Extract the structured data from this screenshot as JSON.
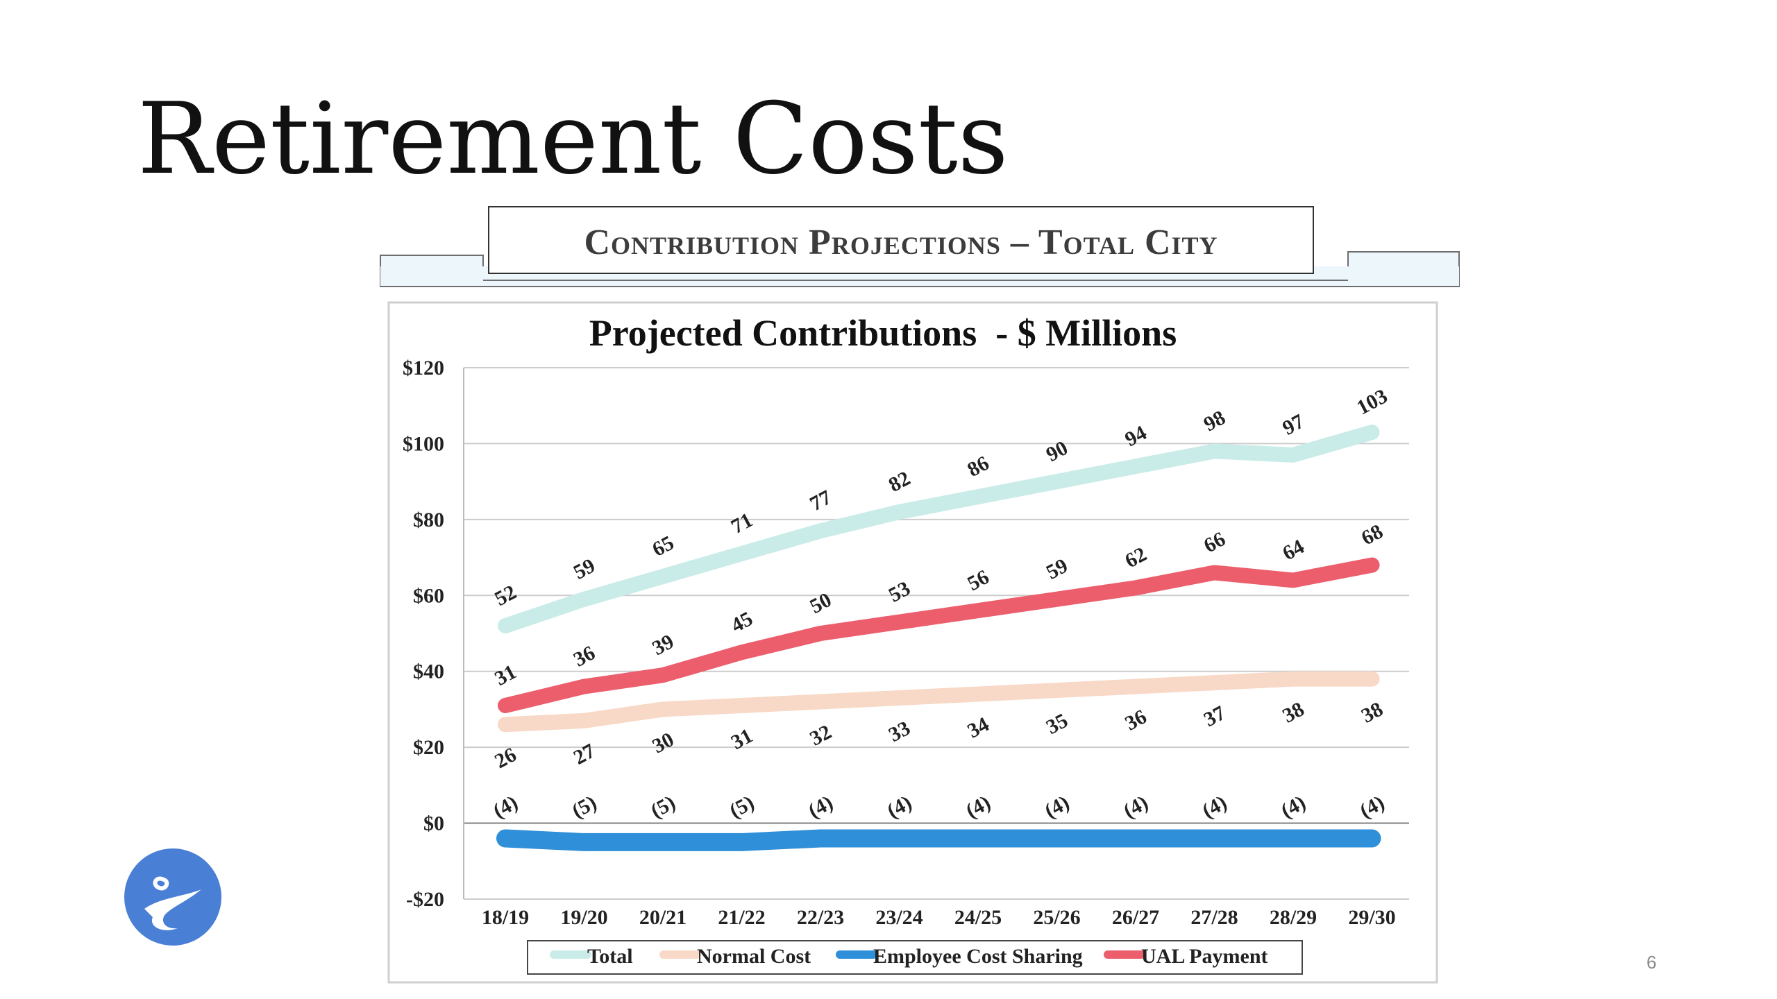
{
  "slide": {
    "title": "Retirement Costs",
    "page_number": "6"
  },
  "banner": {
    "title": "Contribution Projections – Total City"
  },
  "logo": {
    "icon": "city-logo-icon",
    "color": "#4a7fd6"
  },
  "chart_data": {
    "type": "line",
    "title": "Projected Contributions  - $ Millions",
    "xlabel": "",
    "ylabel": "",
    "ylim": [
      -20,
      120
    ],
    "y_ticks": [
      120,
      100,
      80,
      60,
      40,
      20,
      0,
      -20
    ],
    "y_tick_labels": [
      "$120",
      "$100",
      "$80",
      "$60",
      "$40",
      "$20",
      "$0",
      "-$20"
    ],
    "grid": true,
    "legend_position": "bottom",
    "categories": [
      "18/19",
      "19/20",
      "20/21",
      "21/22",
      "22/23",
      "23/24",
      "24/25",
      "25/26",
      "26/27",
      "27/28",
      "28/29",
      "29/30"
    ],
    "series": [
      {
        "name": "Total",
        "color": "#c9ece8",
        "values": [
          52,
          59,
          65,
          71,
          77,
          82,
          86,
          90,
          94,
          98,
          97,
          103
        ],
        "labels": [
          "52",
          "59",
          "65",
          "71",
          "77",
          "82",
          "86",
          "90",
          "94",
          "98",
          "97",
          "103"
        ],
        "label_position": "above"
      },
      {
        "name": "Normal Cost",
        "color": "#f8d8c6",
        "values": [
          26,
          27,
          30,
          31,
          32,
          33,
          34,
          35,
          36,
          37,
          38,
          38
        ],
        "labels": [
          "26",
          "27",
          "30",
          "31",
          "32",
          "33",
          "34",
          "35",
          "36",
          "37",
          "38",
          "38"
        ],
        "label_position": "below"
      },
      {
        "name": "Employee Cost Sharing",
        "color": "#2f8fd8",
        "values": [
          -4,
          -5,
          -5,
          -5,
          -4,
          -4,
          -4,
          -4,
          -4,
          -4,
          -4,
          -4
        ],
        "labels": [
          "(4)",
          "(5)",
          "(5)",
          "(5)",
          "(4)",
          "(4)",
          "(4)",
          "(4)",
          "(4)",
          "(4)",
          "(4)",
          "(4)"
        ],
        "label_position": "high"
      },
      {
        "name": "UAL Payment",
        "color": "#ec5e6c",
        "values": [
          31,
          36,
          39,
          45,
          50,
          53,
          56,
          59,
          62,
          66,
          64,
          68
        ],
        "labels": [
          "31",
          "36",
          "39",
          "45",
          "50",
          "53",
          "56",
          "59",
          "62",
          "66",
          "64",
          "68"
        ],
        "label_position": "above"
      }
    ]
  }
}
